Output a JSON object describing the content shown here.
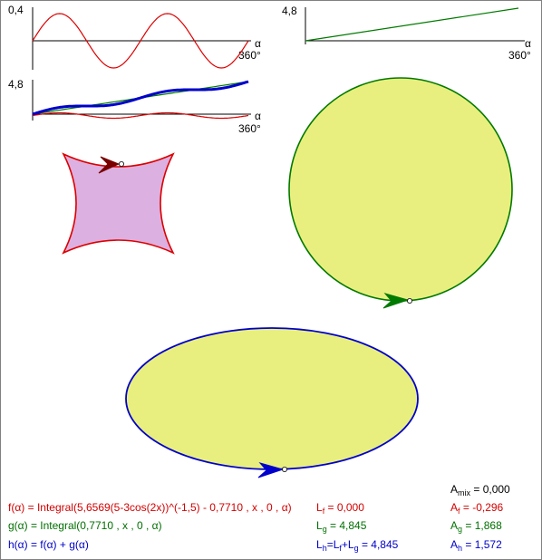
{
  "colors": {
    "f": "#dd0000",
    "g": "#007a00",
    "h": "#0000cc",
    "fill_yellow": "#e9ef7e",
    "fill_pink": "#dcb0e0",
    "axis": "#000000"
  },
  "graphs": {
    "top_left": {
      "y_max_label": "0,4",
      "x_var_label": "α",
      "x_end_label": "360°"
    },
    "mid_left": {
      "y_max_label": "4,8",
      "x_var_label": "α",
      "x_end_label": "360°"
    },
    "top_right": {
      "y_max_label": "4,8",
      "x_var_label": "α",
      "x_end_label": "360°"
    }
  },
  "formulas": {
    "f": "f(α) = Integral(5,6569(5-3cos(2x))^(-1,5) - 0,7710 , x , 0 , α)",
    "g": "g(α) = Integral(0,7710 , x , 0 , α)",
    "h": "h(α) = f(α) + g(α)"
  },
  "lengths": {
    "f": {
      "symbol": "L",
      "sub": "f",
      "value": " = 0,000"
    },
    "g": {
      "symbol": "L",
      "sub": "g",
      "value": " = 4,845"
    },
    "h": {
      "symbol": "L",
      "sub": "h",
      "eq1": "=L",
      "sub1": "f",
      "plus": "+L",
      "sub2": "g",
      "value": " = 4,845"
    }
  },
  "areas": {
    "mix": {
      "symbol": "A",
      "sub": "mix",
      "value": " = 0,000"
    },
    "f": {
      "symbol": "A",
      "sub": "f",
      "value": " = -0,296"
    },
    "g": {
      "symbol": "A",
      "sub": "g",
      "value": " = 1,868"
    },
    "h": {
      "symbol": "A",
      "sub": "h",
      "value": " = 1,572"
    }
  }
}
